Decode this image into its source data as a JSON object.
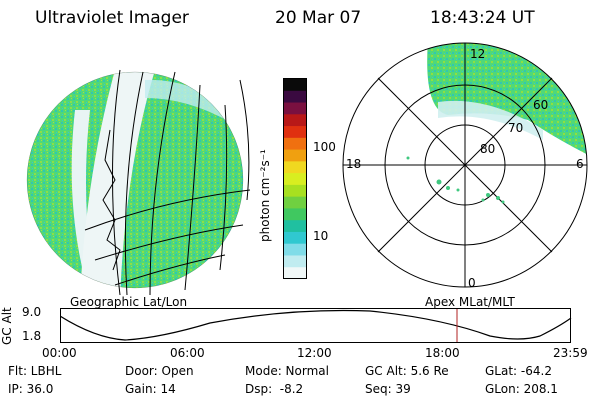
{
  "header": {
    "title": "Ultraviolet Imager",
    "date": "20 Mar 07",
    "time": "18:43:24 UT"
  },
  "colorbar": {
    "unit_label": "photon cm⁻²s⁻¹",
    "ticks": [
      "100",
      "10"
    ],
    "colors": [
      "#0a0a0a",
      "#3a0a40",
      "#7a1040",
      "#b81818",
      "#e03010",
      "#f07010",
      "#f0a010",
      "#f0d820",
      "#d8ee20",
      "#a8e020",
      "#70d040",
      "#40c860",
      "#20c0a0",
      "#30c8d0",
      "#80dce8",
      "#c0ecf0",
      "#f0f8f8"
    ]
  },
  "polar_plot": {
    "hour_labels": {
      "top": "12",
      "left": "18",
      "right": "6",
      "bottom": "0"
    },
    "lat_labels": [
      "60",
      "70",
      "80"
    ]
  },
  "labels": {
    "geographic": "Geographic Lat/Lon",
    "apex": "Apex MLat/MLT"
  },
  "gc_alt_axis": {
    "label": "GC Alt",
    "ymax": "9.0",
    "ymin": "1.8",
    "time_ticks": [
      "00:00",
      "06:00",
      "12:00",
      "18:00",
      "23:59"
    ],
    "marker_color": "#b02020"
  },
  "info": {
    "flt": "Flt: LBHL",
    "ip": "IP: 36.0",
    "door": "Door: Open",
    "gain": "Gain: 14",
    "mode": "Mode: Normal",
    "dsp": "Dsp:  -8.2",
    "gc_alt": "GC Alt: 5.6 Re",
    "seq": "Seq: 39",
    "glat": "GLat: -64.2",
    "glon": "GLon: 208.1"
  }
}
